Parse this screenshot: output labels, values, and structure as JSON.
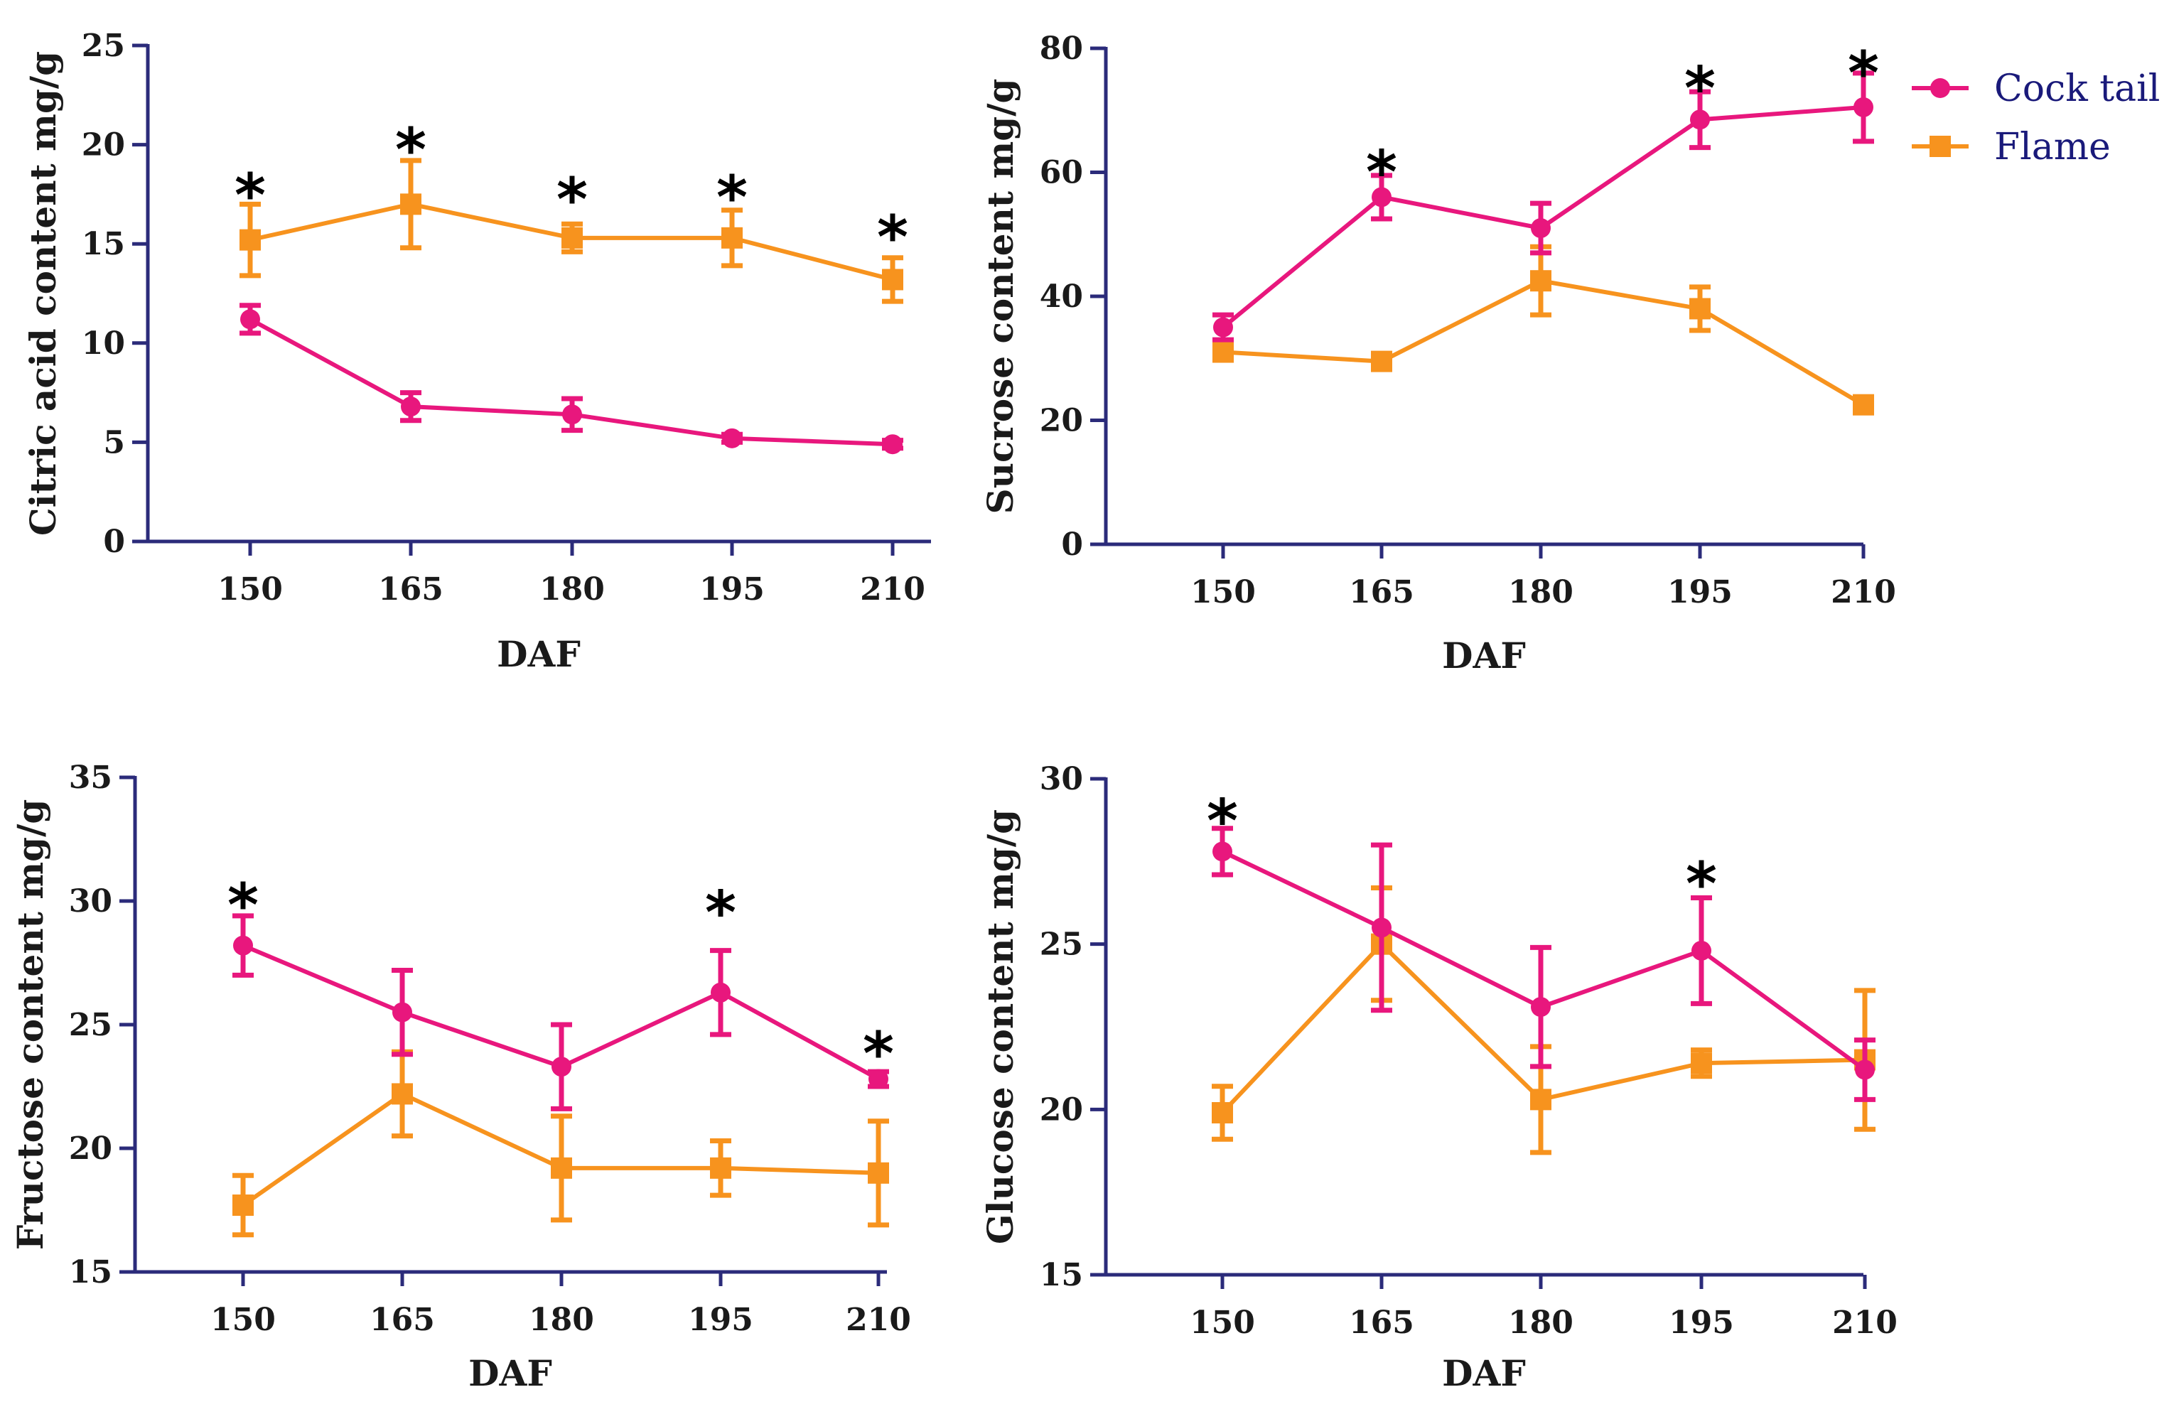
{
  "chart_data": [
    {
      "type": "line",
      "xlabel": "DAF",
      "ylabel": "Citric acid content mg/g",
      "categories": [
        "150",
        "165",
        "180",
        "195",
        "210"
      ],
      "ylim": [
        0,
        25
      ],
      "yticks": [
        0,
        5,
        10,
        15,
        20,
        25
      ],
      "series": [
        {
          "name": "Cock tail",
          "values": [
            11.2,
            6.8,
            6.4,
            5.2,
            4.9
          ],
          "errors": [
            0.7,
            0.7,
            0.8,
            0.2,
            0.2
          ]
        },
        {
          "name": "Flame",
          "values": [
            15.2,
            17.0,
            15.3,
            15.3,
            13.2
          ],
          "errors": [
            1.8,
            2.2,
            0.7,
            1.4,
            1.1
          ]
        }
      ],
      "significance": [
        {
          "x": "150",
          "label": "*",
          "value": 17.9
        },
        {
          "x": "165",
          "label": "*",
          "value": 20.2
        },
        {
          "x": "180",
          "label": "*",
          "value": 17.7
        },
        {
          "x": "195",
          "label": "*",
          "value": 17.8
        },
        {
          "x": "210",
          "label": "*",
          "value": 15.8
        }
      ]
    },
    {
      "type": "line",
      "xlabel": "DAF",
      "ylabel": "Sucrose content mg/g",
      "categories": [
        "150",
        "165",
        "180",
        "195",
        "210"
      ],
      "ylim": [
        0,
        80
      ],
      "yticks": [
        0,
        20,
        40,
        60,
        80
      ],
      "series": [
        {
          "name": "Cock tail",
          "values": [
            35,
            56,
            51,
            68.5,
            70.5
          ],
          "errors": [
            2,
            3.5,
            4,
            4.5,
            5.5
          ]
        },
        {
          "name": "Flame",
          "values": [
            31,
            29.5,
            42.5,
            38,
            22.5
          ],
          "errors": [
            1,
            1,
            5.5,
            3.5,
            0.5
          ]
        }
      ],
      "significance": [
        {
          "x": "165",
          "label": "*",
          "value": 61.5
        },
        {
          "x": "195",
          "label": "*",
          "value": 75
        },
        {
          "x": "210",
          "label": "*",
          "value": 77.5
        }
      ]
    },
    {
      "type": "line",
      "xlabel": "DAF",
      "ylabel": "Fructose content mg/g",
      "categories": [
        "150",
        "165",
        "180",
        "195",
        "210"
      ],
      "ylim": [
        15,
        35
      ],
      "yticks": [
        15,
        20,
        25,
        30,
        35
      ],
      "series": [
        {
          "name": "Cock tail",
          "values": [
            28.2,
            25.5,
            23.3,
            26.3,
            22.8
          ],
          "errors": [
            1.2,
            1.7,
            1.7,
            1.7,
            0.3
          ]
        },
        {
          "name": "Flame",
          "values": [
            17.7,
            22.2,
            19.2,
            19.2,
            19.0
          ],
          "errors": [
            1.2,
            1.7,
            2.1,
            1.1,
            2.1
          ]
        }
      ],
      "significance": [
        {
          "x": "150",
          "label": "*",
          "value": 30.2
        },
        {
          "x": "195",
          "label": "*",
          "value": 29.9
        },
        {
          "x": "210",
          "label": "*",
          "value": 24.2
        }
      ]
    },
    {
      "type": "line",
      "xlabel": "DAF",
      "ylabel": "Glucose content mg/g",
      "categories": [
        "150",
        "165",
        "180",
        "195",
        "210"
      ],
      "ylim": [
        15,
        30
      ],
      "yticks": [
        15,
        20,
        25,
        30
      ],
      "series": [
        {
          "name": "Cock tail",
          "values": [
            27.8,
            25.5,
            23.1,
            24.8,
            21.2
          ],
          "errors": [
            0.7,
            2.5,
            1.8,
            1.6,
            0.9
          ]
        },
        {
          "name": "Flame",
          "values": [
            19.9,
            25.0,
            20.3,
            21.4,
            21.5
          ],
          "errors": [
            0.8,
            1.7,
            1.6,
            0.4,
            2.1
          ]
        }
      ],
      "significance": [
        {
          "x": "150",
          "label": "*",
          "value": 29.0
        },
        {
          "x": "195",
          "label": "*",
          "value": 27.1
        }
      ]
    }
  ],
  "legend": {
    "items": [
      {
        "name": "Cock tail",
        "color": "#e8177d",
        "marker": "circle"
      },
      {
        "name": "Flame",
        "color": "#f7931e",
        "marker": "square"
      }
    ],
    "text_color": "#1a1a7a"
  },
  "colors": {
    "axis": "#2b2b7a",
    "cocktail": "#e8177d",
    "flame": "#f7931e"
  }
}
